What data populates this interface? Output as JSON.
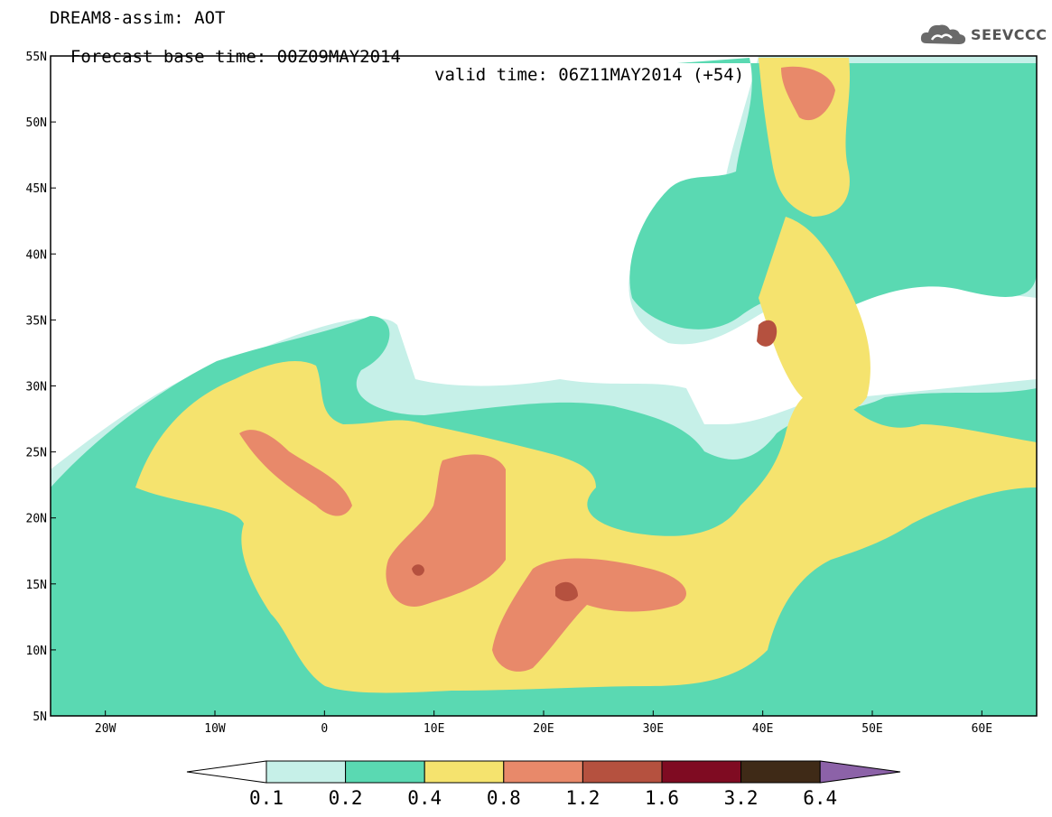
{
  "header": {
    "title_line1": "DREAM8-assim: AOT",
    "title_line2": "Forecast base time: 00Z09MAY2014",
    "valid_time": "valid time: 06Z11MAY2014 (+54)"
  },
  "logo": {
    "text": "SEEVCCC",
    "icon": "cloud-logo-icon"
  },
  "map": {
    "variable": "AOT",
    "lon_range": [
      -25,
      65
    ],
    "lat_range": [
      5,
      55
    ],
    "lat_labels": [
      "55N",
      "50N",
      "45N",
      "40N",
      "35N",
      "30N",
      "25N",
      "20N",
      "15N",
      "10N",
      "5N"
    ],
    "lon_labels": [
      "20W",
      "10W",
      "0",
      "10E",
      "20E",
      "30E",
      "40E",
      "50E",
      "60E"
    ]
  },
  "colorbar": {
    "levels": [
      "0.1",
      "0.2",
      "0.4",
      "0.8",
      "1.2",
      "1.6",
      "3.2",
      "6.4"
    ],
    "colors": [
      "#ffffff",
      "#c6f0e8",
      "#5ad9b2",
      "#f5e36e",
      "#e8896a",
      "#b5513f",
      "#7f0b22",
      "#3f2a17",
      "#8c62a8"
    ]
  }
}
